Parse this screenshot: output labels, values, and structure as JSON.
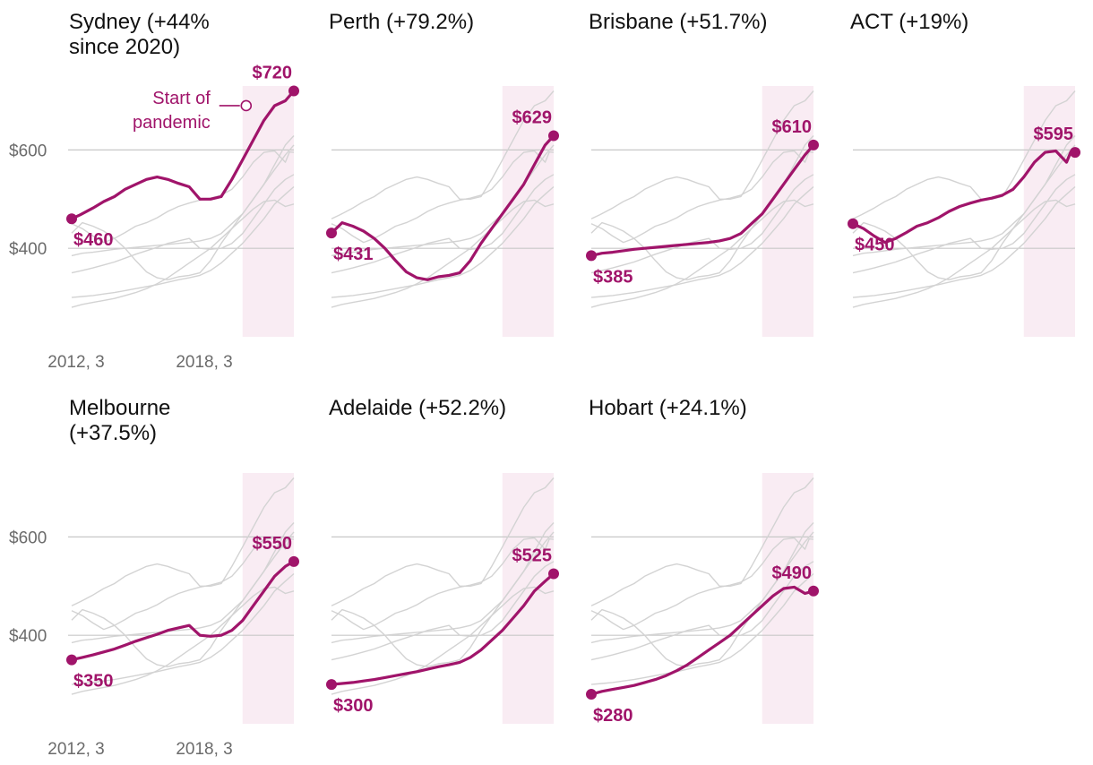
{
  "chart_data": {
    "type": "line",
    "layout": "small-multiples",
    "ylim": [
      220,
      730
    ],
    "yticks": [
      400,
      600
    ],
    "ytick_labels": [
      "$400",
      "$600"
    ],
    "xtick_labels": [
      "2012, 3",
      "2018, 3"
    ],
    "xtick_positions": [
      0,
      6
    ],
    "x_range": [
      0,
      10
    ],
    "pandemic_start": 8,
    "annotation": "Start of pandemic",
    "annotation_lines": [
      "Start of",
      "pandemic"
    ],
    "colors": {
      "highlight": "#a0146a",
      "context": "#d3d3d3",
      "shade": "#f9ecf3",
      "grid": "#c8c8c8"
    },
    "panels": [
      {
        "name": "Sydney",
        "title_lines": [
          "Sydney (+44%",
          "since 2020)"
        ],
        "start_label": "$460",
        "end_label": "$720",
        "x": [
          0,
          0.4,
          1,
          1.5,
          2,
          2.5,
          3,
          3.5,
          4,
          4.5,
          5,
          5.5,
          6,
          6.5,
          7,
          7.5,
          8,
          8.5,
          9,
          9.5,
          10,
          10.4
        ],
        "values": [
          460,
          468,
          482,
          495,
          505,
          520,
          530,
          540,
          545,
          540,
          532,
          525,
          500,
          500,
          505,
          540,
          580,
          620,
          660,
          690,
          700,
          720
        ]
      },
      {
        "name": "Perth",
        "title_lines": [
          "Perth (+79.2%)"
        ],
        "start_label": "$431",
        "end_label": "$629",
        "x": [
          0,
          0.5,
          1,
          1.5,
          2,
          2.5,
          3,
          3.5,
          4,
          4.5,
          5,
          5.5,
          6,
          6.5,
          7,
          7.5,
          8,
          8.5,
          9,
          9.5,
          10,
          10.4
        ],
        "values": [
          431,
          452,
          445,
          435,
          420,
          400,
          375,
          352,
          340,
          336,
          342,
          345,
          350,
          375,
          410,
          440,
          470,
          500,
          530,
          570,
          610,
          629
        ]
      },
      {
        "name": "Brisbane",
        "title_lines": [
          "Brisbane (+51.7%)"
        ],
        "start_label": "$385",
        "end_label": "$610",
        "x": [
          0,
          0.5,
          1,
          1.5,
          2,
          2.5,
          3,
          3.5,
          4,
          4.5,
          5,
          5.5,
          6,
          6.5,
          7,
          7.5,
          8,
          8.5,
          9,
          9.5,
          10,
          10.4
        ],
        "values": [
          385,
          390,
          392,
          395,
          398,
          400,
          402,
          404,
          406,
          408,
          410,
          412,
          415,
          420,
          430,
          450,
          470,
          500,
          530,
          560,
          590,
          610
        ]
      },
      {
        "name": "ACT",
        "title_lines": [
          "ACT (+19%)"
        ],
        "start_label": "$450",
        "end_label": "$595",
        "x": [
          0,
          0.5,
          1,
          1.5,
          2,
          2.5,
          3,
          3.5,
          4,
          4.5,
          5,
          5.5,
          6,
          6.5,
          7,
          7.5,
          8,
          8.5,
          9,
          9.5,
          10,
          10.2,
          10.4
        ],
        "values": [
          450,
          440,
          425,
          412,
          420,
          432,
          445,
          452,
          462,
          475,
          485,
          492,
          498,
          502,
          508,
          520,
          545,
          575,
          595,
          598,
          575,
          596,
          595
        ]
      },
      {
        "name": "Melbourne",
        "title_lines": [
          "Melbourne",
          "(+37.5%)"
        ],
        "start_label": "$350",
        "end_label": "$550",
        "x": [
          0,
          0.5,
          1,
          1.5,
          2,
          2.5,
          3,
          3.5,
          4,
          4.5,
          5,
          5.5,
          6,
          6.5,
          7,
          7.5,
          8,
          8.5,
          9,
          9.5,
          10,
          10.4
        ],
        "values": [
          350,
          355,
          360,
          366,
          372,
          380,
          388,
          395,
          402,
          410,
          415,
          420,
          400,
          398,
          400,
          410,
          430,
          460,
          490,
          520,
          540,
          550
        ]
      },
      {
        "name": "Adelaide",
        "title_lines": [
          "Adelaide (+52.2%)"
        ],
        "start_label": "$300",
        "end_label": "$525",
        "x": [
          0,
          0.5,
          1,
          1.5,
          2,
          2.5,
          3,
          3.5,
          4,
          4.5,
          5,
          5.5,
          6,
          6.5,
          7,
          7.5,
          8,
          8.5,
          9,
          9.5,
          10,
          10.4
        ],
        "values": [
          300,
          302,
          304,
          307,
          310,
          314,
          318,
          322,
          326,
          331,
          336,
          340,
          345,
          355,
          370,
          390,
          410,
          435,
          460,
          490,
          510,
          525
        ]
      },
      {
        "name": "Hobart",
        "title_lines": [
          "Hobart (+24.1%)"
        ],
        "start_label": "$280",
        "end_label": "$490",
        "x": [
          0,
          0.5,
          1,
          1.5,
          2,
          2.5,
          3,
          3.5,
          4,
          4.5,
          5,
          5.5,
          6,
          6.5,
          7,
          7.5,
          8,
          8.5,
          9,
          9.5,
          10,
          10.4
        ],
        "values": [
          280,
          286,
          290,
          294,
          298,
          304,
          310,
          318,
          328,
          340,
          355,
          370,
          385,
          400,
          420,
          440,
          460,
          480,
          495,
          498,
          485,
          490
        ]
      }
    ]
  }
}
